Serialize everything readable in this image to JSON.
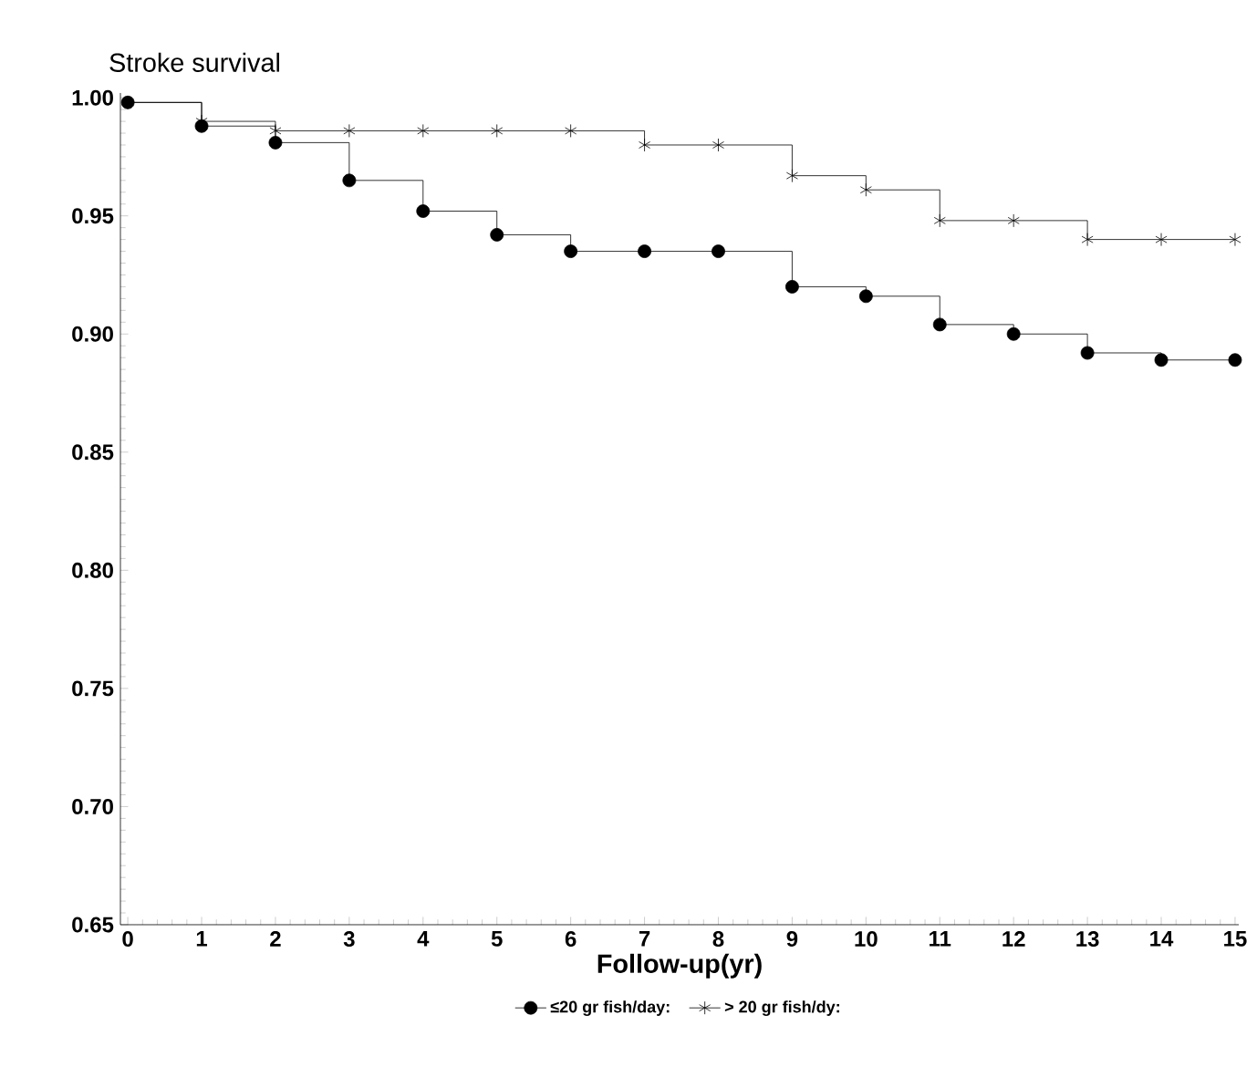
{
  "chart_data": {
    "type": "step",
    "title": "Stroke survival",
    "xlabel": "Follow-up(yr)",
    "x": [
      0,
      1,
      2,
      3,
      4,
      5,
      6,
      7,
      8,
      9,
      10,
      11,
      12,
      13,
      14,
      15
    ],
    "series": [
      {
        "name": "≤20 gr fish/day:",
        "color": "#000000",
        "marker": "circle",
        "values": [
          0.998,
          0.988,
          0.981,
          0.965,
          0.952,
          0.942,
          0.935,
          0.935,
          0.935,
          0.92,
          0.916,
          0.904,
          0.9,
          0.892,
          0.889,
          0.889
        ]
      },
      {
        "name": "> 20 gr fish/dy:",
        "color": "#000000",
        "marker": "cross",
        "values": [
          0.998,
          0.99,
          0.986,
          0.986,
          0.986,
          0.986,
          0.986,
          0.98,
          0.98,
          0.967,
          0.961,
          0.948,
          0.948,
          0.94,
          0.94,
          0.94
        ]
      }
    ],
    "xlim": [
      -0.1,
      15.05
    ],
    "ylim": [
      0.65,
      1.002
    ],
    "xticks": [
      0,
      1,
      2,
      3,
      4,
      5,
      6,
      7,
      8,
      9,
      10,
      11,
      12,
      13,
      14,
      15
    ],
    "yticks": [
      {
        "value": 0.65,
        "label": "0.65"
      },
      {
        "value": 0.7,
        "label": "0.70"
      },
      {
        "value": 0.75,
        "label": "0.75"
      },
      {
        "value": 0.8,
        "label": "0.80"
      },
      {
        "value": 0.85,
        "label": "0.85"
      },
      {
        "value": 0.9,
        "label": "0.90"
      },
      {
        "value": 0.95,
        "label": "0.95"
      },
      {
        "value": 1.0,
        "label": "1.00"
      }
    ],
    "legend": "bottom",
    "line_style": "solid"
  }
}
